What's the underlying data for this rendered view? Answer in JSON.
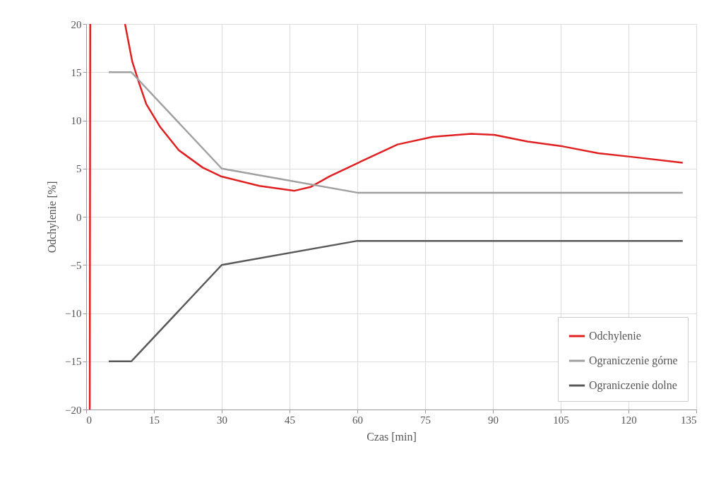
{
  "chart_data": {
    "type": "line",
    "xlabel": "Czas [min]",
    "ylabel": "Odchylenie [%]",
    "xlim": [
      0,
      135
    ],
    "xticks": [
      0,
      15,
      30,
      45,
      60,
      75,
      90,
      105,
      120,
      135
    ],
    "ylim": [
      -20,
      20
    ],
    "yticks": [
      -20,
      -15,
      -10,
      -5,
      0,
      5,
      10,
      15,
      20
    ],
    "grid": true,
    "legend": "bottom right",
    "line_style": "solid",
    "marker": "none",
    "series": [
      {
        "name": "Odchylenie",
        "color": "#e02020",
        "x": [
          0.8,
          0.9,
          4,
          8.6,
          10.2,
          11.7,
          13.3,
          16.4,
          20.5,
          25.8,
          29.8,
          38.3,
          46.1,
          49.7,
          53.9,
          60.2,
          68.9,
          76.7,
          85.2,
          90.3,
          97.7,
          105.5,
          113.3,
          121,
          132
        ],
        "values": [
          -20,
          20,
          null,
          20,
          16.1,
          13.9,
          11.7,
          9.3,
          6.9,
          5.1,
          4.2,
          3.2,
          2.7,
          3.1,
          4.2,
          5.6,
          7.5,
          8.3,
          8.6,
          8.5,
          7.8,
          7.3,
          6.6,
          6.2,
          5.6
        ]
      },
      {
        "name": "Ograniczenie górne",
        "color": "#a0a0a0",
        "x": [
          5,
          10,
          30,
          60,
          132
        ],
        "values": [
          15,
          15,
          5,
          2.5,
          2.5
        ]
      },
      {
        "name": "Ograniczenie dolne",
        "color": "#595959",
        "x": [
          5,
          10,
          30,
          60,
          132
        ],
        "values": [
          -15,
          -15,
          -5,
          -2.5,
          -2.5
        ]
      }
    ]
  }
}
